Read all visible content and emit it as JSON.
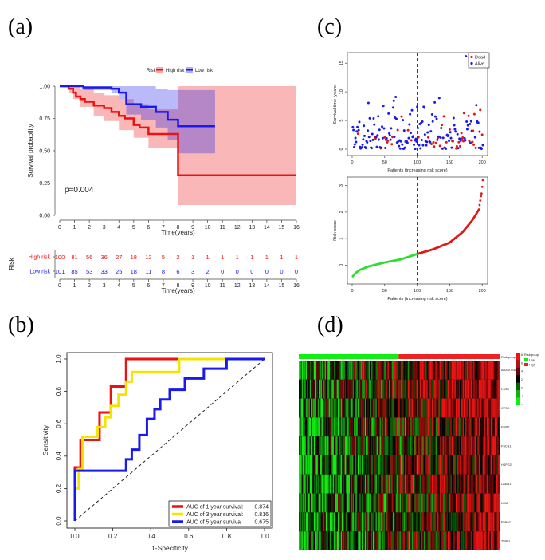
{
  "colors": {
    "high": "#ee1111",
    "low": "#1a1aee",
    "dead": "#e01818",
    "alive": "#1a1aee",
    "green": "#33dd33",
    "yellow": "#f5e400",
    "heatRed": "#ee2222",
    "heatGreen": "#11ee11"
  },
  "panels": {
    "a": "(a)",
    "b": "(b)",
    "c": "(c)",
    "d": "(d)"
  },
  "chart_data": [
    {
      "id": "km",
      "type": "line",
      "title": "",
      "legend": {
        "title": "Risk",
        "items": [
          "High risk",
          "Low risk"
        ],
        "position": "top"
      },
      "ylabel": "Survival probability",
      "xlabel": "Time(years)",
      "xlim": [
        0,
        16
      ],
      "ylim": [
        0,
        1
      ],
      "xticks": [
        "0",
        "1",
        "2",
        "3",
        "4",
        "5",
        "6",
        "7",
        "8",
        "9",
        "10",
        "11",
        "12",
        "13",
        "14",
        "15",
        "16"
      ],
      "yticks": [
        "0.00",
        "0.25",
        "0.50",
        "0.75",
        "1.00"
      ],
      "pvalue": "p=0.004",
      "series": [
        {
          "name": "High risk",
          "steps": [
            [
              0,
              1
            ],
            [
              0.6,
              0.98
            ],
            [
              0.9,
              0.95
            ],
            [
              1.1,
              0.92
            ],
            [
              1.4,
              0.9
            ],
            [
              1.7,
              0.88
            ],
            [
              2.3,
              0.85
            ],
            [
              3.0,
              0.83
            ],
            [
              3.5,
              0.8
            ],
            [
              4.0,
              0.77
            ],
            [
              4.4,
              0.75
            ],
            [
              5.0,
              0.7
            ],
            [
              5.4,
              0.68
            ],
            [
              6.0,
              0.63
            ],
            [
              8.0,
              0.31
            ],
            [
              16,
              0.31
            ]
          ],
          "ci_upper": [
            [
              0,
              1
            ],
            [
              0.6,
              1
            ],
            [
              0.9,
              1
            ],
            [
              1.4,
              0.98
            ],
            [
              2.3,
              0.95
            ],
            [
              3.0,
              0.93
            ],
            [
              4.0,
              0.9
            ],
            [
              5.0,
              0.86
            ],
            [
              6.0,
              0.82
            ],
            [
              8.0,
              1.0
            ],
            [
              16,
              1.0
            ]
          ],
          "ci_lower": [
            [
              0,
              1
            ],
            [
              0.6,
              0.95
            ],
            [
              0.9,
              0.9
            ],
            [
              1.4,
              0.84
            ],
            [
              2.3,
              0.77
            ],
            [
              3.0,
              0.73
            ],
            [
              4.0,
              0.66
            ],
            [
              5.0,
              0.6
            ],
            [
              6.0,
              0.52
            ],
            [
              8.0,
              0.08
            ],
            [
              16,
              0.08
            ]
          ]
        },
        {
          "name": "Low risk",
          "steps": [
            [
              0,
              1
            ],
            [
              1.6,
              0.99
            ],
            [
              3.5,
              0.98
            ],
            [
              4.0,
              0.95
            ],
            [
              4.5,
              0.86
            ],
            [
              5.5,
              0.84
            ],
            [
              6.5,
              0.8
            ],
            [
              7.3,
              0.74
            ],
            [
              8.0,
              0.69
            ],
            [
              10.5,
              0.69
            ]
          ],
          "ci_upper": [
            [
              0,
              1
            ],
            [
              4.0,
              1
            ],
            [
              4.5,
              1
            ],
            [
              6.5,
              0.98
            ],
            [
              7.3,
              0.97
            ],
            [
              8.0,
              0.97
            ],
            [
              10.5,
              0.97
            ]
          ],
          "ci_lower": [
            [
              0,
              1
            ],
            [
              1.6,
              0.97
            ],
            [
              3.5,
              0.95
            ],
            [
              4.0,
              0.9
            ],
            [
              4.5,
              0.78
            ],
            [
              5.5,
              0.74
            ],
            [
              6.5,
              0.68
            ],
            [
              7.3,
              0.58
            ],
            [
              8.0,
              0.48
            ],
            [
              10.5,
              0.48
            ]
          ]
        }
      ]
    },
    {
      "id": "risktable",
      "type": "table",
      "ylabel": "Risk",
      "xlabel": "Time(years)",
      "rows": [
        {
          "name": "High risk",
          "values": [
            "100",
            "81",
            "56",
            "36",
            "27",
            "18",
            "12",
            "5",
            "2",
            "1",
            "1",
            "1",
            "1",
            "1",
            "1",
            "1",
            "1"
          ]
        },
        {
          "name": "Low risk",
          "values": [
            "101",
            "85",
            "53",
            "33",
            "25",
            "18",
            "11",
            "8",
            "6",
            "3",
            "2",
            "0",
            "0",
            "0",
            "0",
            "0",
            "0"
          ]
        }
      ],
      "xticks": [
        "0",
        "1",
        "2",
        "3",
        "4",
        "5",
        "6",
        "7",
        "8",
        "9",
        "10",
        "11",
        "12",
        "13",
        "14",
        "15",
        "16"
      ]
    },
    {
      "id": "roc",
      "type": "line",
      "xlabel": "1-Specificity",
      "ylabel": "Sensitivity",
      "xlim": [
        0,
        1
      ],
      "ylim": [
        0,
        1
      ],
      "xticks": [
        "0.0",
        "0.2",
        "0.4",
        "0.6",
        "0.8",
        "1.0"
      ],
      "yticks": [
        "0.0",
        "0.2",
        "0.4",
        "0.6",
        "0.8",
        "1.0"
      ],
      "legend_position": "bottom-right",
      "series": [
        {
          "name": "AUC of 1 year survival:",
          "auc": "0.874",
          "color_key": "high",
          "points": [
            [
              0,
              0
            ],
            [
              0,
              0.33
            ],
            [
              0.03,
              0.33
            ],
            [
              0.03,
              0.5
            ],
            [
              0.13,
              0.5
            ],
            [
              0.13,
              0.67
            ],
            [
              0.19,
              0.67
            ],
            [
              0.19,
              0.83
            ],
            [
              0.27,
              0.83
            ],
            [
              0.27,
              1.0
            ],
            [
              1.0,
              1.0
            ]
          ]
        },
        {
          "name": "AUC of 3 year survival:",
          "auc": "0.816",
          "color_key": "yellow",
          "points": [
            [
              0,
              0
            ],
            [
              0,
              0.2
            ],
            [
              0.02,
              0.2
            ],
            [
              0.02,
              0.32
            ],
            [
              0.04,
              0.32
            ],
            [
              0.04,
              0.52
            ],
            [
              0.12,
              0.52
            ],
            [
              0.12,
              0.58
            ],
            [
              0.16,
              0.58
            ],
            [
              0.16,
              0.64
            ],
            [
              0.19,
              0.64
            ],
            [
              0.19,
              0.71
            ],
            [
              0.23,
              0.71
            ],
            [
              0.23,
              0.78
            ],
            [
              0.27,
              0.78
            ],
            [
              0.27,
              0.86
            ],
            [
              0.3,
              0.86
            ],
            [
              0.3,
              0.92
            ],
            [
              0.55,
              0.92
            ],
            [
              0.55,
              1.0
            ],
            [
              1.0,
              1.0
            ]
          ]
        },
        {
          "name": "AUC of 5 year surviva",
          "auc": "0.675",
          "color_key": "low",
          "points": [
            [
              0,
              0
            ],
            [
              0,
              0.31
            ],
            [
              0.27,
              0.31
            ],
            [
              0.27,
              0.38
            ],
            [
              0.3,
              0.38
            ],
            [
              0.3,
              0.44
            ],
            [
              0.34,
              0.44
            ],
            [
              0.34,
              0.53
            ],
            [
              0.38,
              0.53
            ],
            [
              0.38,
              0.63
            ],
            [
              0.42,
              0.63
            ],
            [
              0.42,
              0.69
            ],
            [
              0.45,
              0.69
            ],
            [
              0.45,
              0.75
            ],
            [
              0.5,
              0.75
            ],
            [
              0.5,
              0.81
            ],
            [
              0.58,
              0.81
            ],
            [
              0.58,
              0.88
            ],
            [
              0.68,
              0.88
            ],
            [
              0.68,
              0.94
            ],
            [
              0.8,
              0.94
            ],
            [
              0.8,
              1.0
            ],
            [
              1.0,
              1.0
            ]
          ]
        }
      ]
    },
    {
      "id": "survtime",
      "type": "scatter",
      "ylabel": "Survival time (years)",
      "xlabel": "Patients (increasing risk score)",
      "xlim": [
        0,
        201
      ],
      "ylim": [
        0,
        16
      ],
      "xticks": [
        "0",
        "50",
        "100",
        "150",
        "200"
      ],
      "yticks": [
        "0",
        "5",
        "10",
        "15"
      ],
      "cutoff_x": 100,
      "legend": {
        "items": [
          "Dead",
          "Alive"
        ],
        "position": "top-right"
      },
      "seed": 17
    },
    {
      "id": "riskscore",
      "type": "scatter",
      "ylabel": "Risk score",
      "xlabel": "Patients (increasing risk score)",
      "xlim": [
        0,
        201
      ],
      "ylim": [
        -0.5,
        3.2
      ],
      "xticks": [
        "0",
        "50",
        "100",
        "150",
        "200"
      ],
      "yticks": [
        "0",
        "1",
        "2",
        "3"
      ],
      "cutoff_x": 100,
      "cutoff_y": 0.42,
      "anchors": [
        [
          1,
          -0.42
        ],
        [
          5,
          -0.3
        ],
        [
          12,
          -0.18
        ],
        [
          25,
          -0.05
        ],
        [
          50,
          0.1
        ],
        [
          75,
          0.22
        ],
        [
          100,
          0.42
        ],
        [
          125,
          0.6
        ],
        [
          150,
          0.85
        ],
        [
          170,
          1.25
        ],
        [
          185,
          1.7
        ],
        [
          195,
          2.1
        ],
        [
          198,
          2.6
        ],
        [
          199,
          2.7
        ],
        [
          201,
          3.2
        ]
      ]
    },
    {
      "id": "heatmap",
      "type": "heatmap",
      "genes": [
        "ADAMTS6",
        "CD44",
        "CTSD",
        "EGR2",
        "FSCN1",
        "HSPG2",
        "LAMA1",
        "LUM",
        "P4HA1",
        "TIMP1"
      ],
      "columns": 201,
      "group_split": 100,
      "group_label": "Riskgroup",
      "legend": {
        "title": "Riskgroup",
        "items": [
          "Low",
          "High"
        ],
        "scale": [
          "8",
          "6",
          "4",
          "2",
          "0",
          "-2",
          "-4"
        ]
      },
      "seed": 42
    }
  ]
}
